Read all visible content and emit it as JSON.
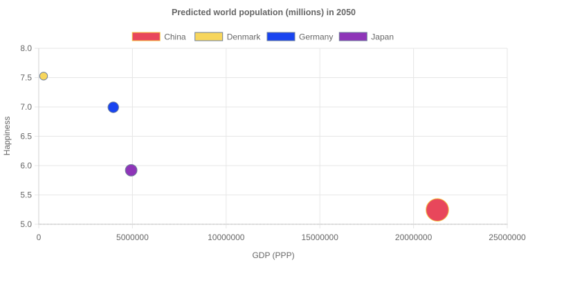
{
  "chart_data": {
    "type": "bubble",
    "title": "Predicted world population (millions) in 2050",
    "xlabel": "GDP (PPP)",
    "ylabel": "Happiness",
    "xlim": [
      0,
      25000000
    ],
    "ylim": [
      5.0,
      8.0
    ],
    "x_ticks": [
      "0",
      "5000000",
      "10000000",
      "15000000",
      "20000000",
      "25000000"
    ],
    "x_tick_values": [
      0,
      5000000,
      10000000,
      15000000,
      20000000,
      25000000
    ],
    "y_ticks": [
      "5.0",
      "5.5",
      "6.0",
      "6.5",
      "7.0",
      "7.5",
      "8.0"
    ],
    "y_tick_values": [
      5.0,
      5.5,
      6.0,
      6.5,
      7.0,
      7.5,
      8.0
    ],
    "grid": true,
    "legend_position": "top",
    "series": [
      {
        "name": "China",
        "x": 21269017,
        "y": 5.245,
        "population": 1422,
        "fill": "#e8475b",
        "stroke": "#f5c342"
      },
      {
        "name": "Denmark",
        "x": 258702,
        "y": 7.526,
        "population": 6,
        "fill": "#f7d65d",
        "stroke": "#6e7f9a"
      },
      {
        "name": "Germany",
        "x": 3979083,
        "y": 6.994,
        "population": 81,
        "fill": "#1944f0",
        "stroke": "#6e7f9a"
      },
      {
        "name": "Japan",
        "x": 4932556,
        "y": 5.921,
        "population": 127,
        "fill": "#8e35b8",
        "stroke": "#6e7f9a"
      }
    ]
  }
}
